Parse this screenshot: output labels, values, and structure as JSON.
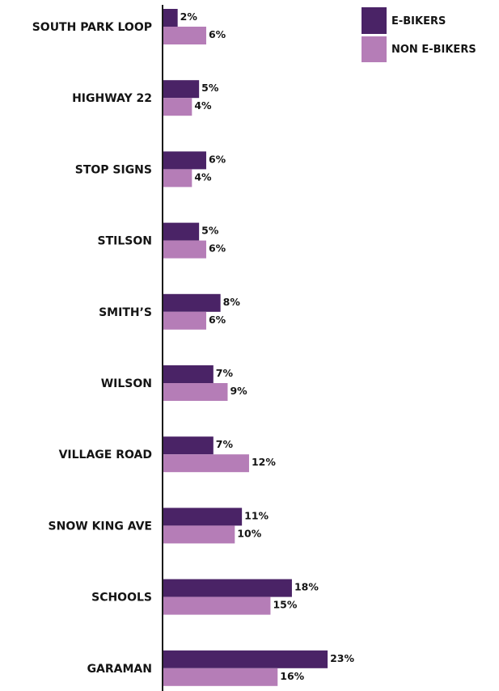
{
  "chart_data": {
    "type": "bar",
    "orientation": "horizontal",
    "categories": [
      "SOUTH PARK LOOP",
      "HIGHWAY 22",
      "STOP SIGNS",
      "STILSON",
      "SMITH’S",
      "WILSON",
      "VILLAGE ROAD",
      "SNOW KING AVE",
      "SCHOOLS",
      "GARAMAN"
    ],
    "series": [
      {
        "name": "E-BIKERS",
        "values": [
          2,
          5,
          6,
          5,
          8,
          7,
          7,
          11,
          18,
          23
        ],
        "labels": [
          "2%",
          "5%",
          "6%",
          "5%",
          "8%",
          "7%",
          "7%",
          "11%",
          "18%",
          "23%"
        ]
      },
      {
        "name": "NON E-BIKERS",
        "values": [
          6,
          4,
          4,
          6,
          6,
          9,
          12,
          10,
          15,
          16
        ],
        "labels": [
          "6%",
          "4%",
          "4%",
          "6%",
          "6%",
          "9%",
          "12%",
          "10%",
          "15%",
          "16%"
        ]
      }
    ],
    "unit": "%",
    "grid": false,
    "legend_position": "top-right"
  },
  "colors": {
    "e_bikers": "#4a2366",
    "non_e_bikers": "#b57db7",
    "axis": "#1a1a1a",
    "text": "#141414"
  }
}
